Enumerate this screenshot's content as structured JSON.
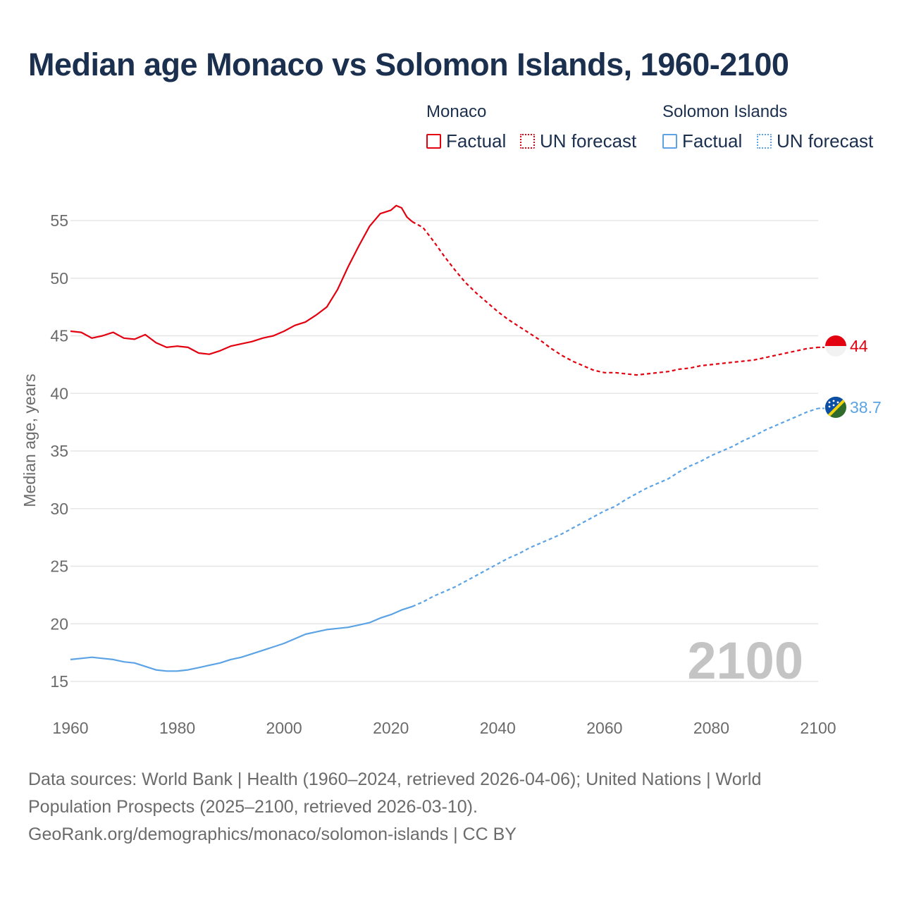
{
  "title": "Median age Monaco vs Solomon Islands, 1960-2100",
  "legend": {
    "groups": [
      {
        "name": "Monaco",
        "color": "#e3000f",
        "factual_label": "Factual",
        "forecast_label": "UN forecast"
      },
      {
        "name": "Solomon Islands",
        "color": "#5ba3e5",
        "factual_label": "Factual",
        "forecast_label": "UN forecast"
      }
    ]
  },
  "year_watermark": "2100",
  "footer": {
    "line1": "Data sources: World Bank | Health (1960–2024, retrieved 2026-04-06); United Nations | World",
    "line2": "Population Prospects (2025–2100, retrieved 2026-03-10).",
    "line3": "GeoRank.org/demographics/monaco/solomon-islands | CC BY"
  },
  "chart_data": {
    "type": "line",
    "title": "Median age Monaco vs Solomon Islands, 1960-2100",
    "xlabel": "",
    "ylabel": "Median age, years",
    "xlim": [
      1960,
      2100
    ],
    "ylim": [
      13,
      58
    ],
    "x_ticks": [
      1960,
      1980,
      2000,
      2020,
      2040,
      2060,
      2080,
      2100
    ],
    "y_ticks": [
      15,
      20,
      25,
      30,
      35,
      40,
      45,
      50,
      55
    ],
    "grid": true,
    "forecast_start_year": 2024,
    "series": [
      {
        "name": "Monaco",
        "color": "#e3000f",
        "end_label": "44",
        "flag": "monaco-flag",
        "points": [
          [
            1960,
            45.4
          ],
          [
            1962,
            45.3
          ],
          [
            1964,
            44.8
          ],
          [
            1966,
            45.0
          ],
          [
            1968,
            45.3
          ],
          [
            1970,
            44.8
          ],
          [
            1972,
            44.7
          ],
          [
            1974,
            45.1
          ],
          [
            1976,
            44.4
          ],
          [
            1978,
            44.0
          ],
          [
            1980,
            44.1
          ],
          [
            1982,
            44.0
          ],
          [
            1984,
            43.5
          ],
          [
            1986,
            43.4
          ],
          [
            1988,
            43.7
          ],
          [
            1990,
            44.1
          ],
          [
            1992,
            44.3
          ],
          [
            1994,
            44.5
          ],
          [
            1996,
            44.8
          ],
          [
            1998,
            45.0
          ],
          [
            2000,
            45.4
          ],
          [
            2002,
            45.9
          ],
          [
            2004,
            46.2
          ],
          [
            2006,
            46.8
          ],
          [
            2008,
            47.5
          ],
          [
            2010,
            49.0
          ],
          [
            2012,
            51.0
          ],
          [
            2014,
            52.8
          ],
          [
            2016,
            54.5
          ],
          [
            2018,
            55.6
          ],
          [
            2020,
            55.9
          ],
          [
            2021,
            56.3
          ],
          [
            2022,
            56.1
          ],
          [
            2023,
            55.3
          ],
          [
            2024,
            54.9
          ],
          [
            2026,
            54.4
          ],
          [
            2028,
            53.2
          ],
          [
            2030,
            51.9
          ],
          [
            2032,
            50.7
          ],
          [
            2034,
            49.6
          ],
          [
            2036,
            48.7
          ],
          [
            2038,
            47.9
          ],
          [
            2040,
            47.1
          ],
          [
            2042,
            46.4
          ],
          [
            2044,
            45.8
          ],
          [
            2046,
            45.2
          ],
          [
            2048,
            44.6
          ],
          [
            2050,
            43.9
          ],
          [
            2052,
            43.3
          ],
          [
            2054,
            42.8
          ],
          [
            2056,
            42.4
          ],
          [
            2058,
            42.0
          ],
          [
            2060,
            41.8
          ],
          [
            2062,
            41.8
          ],
          [
            2064,
            41.7
          ],
          [
            2066,
            41.6
          ],
          [
            2068,
            41.7
          ],
          [
            2070,
            41.8
          ],
          [
            2072,
            41.9
          ],
          [
            2074,
            42.1
          ],
          [
            2076,
            42.2
          ],
          [
            2078,
            42.4
          ],
          [
            2080,
            42.5
          ],
          [
            2082,
            42.6
          ],
          [
            2084,
            42.7
          ],
          [
            2086,
            42.8
          ],
          [
            2088,
            42.9
          ],
          [
            2090,
            43.1
          ],
          [
            2092,
            43.3
          ],
          [
            2094,
            43.5
          ],
          [
            2096,
            43.7
          ],
          [
            2098,
            43.9
          ],
          [
            2100,
            44.0
          ]
        ]
      },
      {
        "name": "Solomon Islands",
        "color": "#5ba3e5",
        "end_label": "38.7",
        "flag": "solomon-islands-flag",
        "points": [
          [
            1960,
            16.9
          ],
          [
            1962,
            17.0
          ],
          [
            1964,
            17.1
          ],
          [
            1966,
            17.0
          ],
          [
            1968,
            16.9
          ],
          [
            1970,
            16.7
          ],
          [
            1972,
            16.6
          ],
          [
            1974,
            16.3
          ],
          [
            1976,
            16.0
          ],
          [
            1978,
            15.9
          ],
          [
            1980,
            15.9
          ],
          [
            1982,
            16.0
          ],
          [
            1984,
            16.2
          ],
          [
            1986,
            16.4
          ],
          [
            1988,
            16.6
          ],
          [
            1990,
            16.9
          ],
          [
            1992,
            17.1
          ],
          [
            1994,
            17.4
          ],
          [
            1996,
            17.7
          ],
          [
            1998,
            18.0
          ],
          [
            2000,
            18.3
          ],
          [
            2002,
            18.7
          ],
          [
            2004,
            19.1
          ],
          [
            2006,
            19.3
          ],
          [
            2008,
            19.5
          ],
          [
            2010,
            19.6
          ],
          [
            2012,
            19.7
          ],
          [
            2014,
            19.9
          ],
          [
            2016,
            20.1
          ],
          [
            2018,
            20.5
          ],
          [
            2020,
            20.8
          ],
          [
            2022,
            21.2
          ],
          [
            2024,
            21.5
          ],
          [
            2026,
            21.9
          ],
          [
            2028,
            22.4
          ],
          [
            2030,
            22.8
          ],
          [
            2032,
            23.2
          ],
          [
            2034,
            23.7
          ],
          [
            2036,
            24.2
          ],
          [
            2038,
            24.7
          ],
          [
            2040,
            25.2
          ],
          [
            2042,
            25.7
          ],
          [
            2044,
            26.1
          ],
          [
            2046,
            26.6
          ],
          [
            2048,
            27.0
          ],
          [
            2050,
            27.4
          ],
          [
            2052,
            27.8
          ],
          [
            2054,
            28.3
          ],
          [
            2056,
            28.8
          ],
          [
            2058,
            29.3
          ],
          [
            2060,
            29.8
          ],
          [
            2062,
            30.2
          ],
          [
            2064,
            30.8
          ],
          [
            2066,
            31.3
          ],
          [
            2068,
            31.8
          ],
          [
            2070,
            32.2
          ],
          [
            2072,
            32.6
          ],
          [
            2074,
            33.2
          ],
          [
            2076,
            33.7
          ],
          [
            2078,
            34.1
          ],
          [
            2080,
            34.6
          ],
          [
            2082,
            35.0
          ],
          [
            2084,
            35.4
          ],
          [
            2086,
            35.9
          ],
          [
            2088,
            36.3
          ],
          [
            2090,
            36.8
          ],
          [
            2092,
            37.2
          ],
          [
            2094,
            37.6
          ],
          [
            2096,
            38.0
          ],
          [
            2098,
            38.4
          ],
          [
            2100,
            38.7
          ]
        ]
      }
    ]
  }
}
